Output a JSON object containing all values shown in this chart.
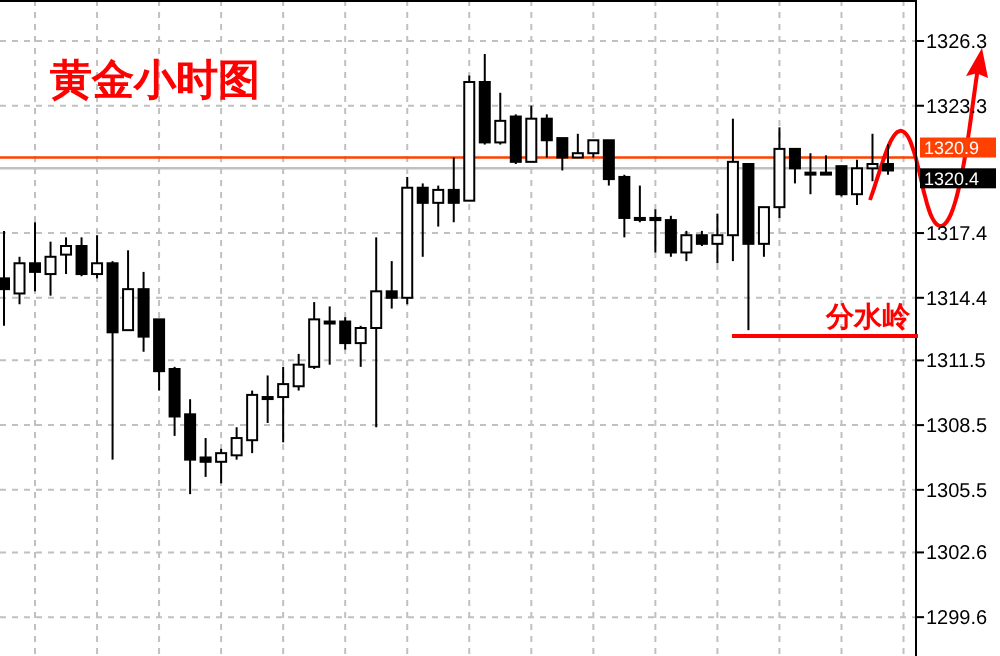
{
  "chart_data": {
    "type": "candlestick",
    "title": "黄金小时图",
    "categories": [
      null,
      null,
      null,
      null,
      null,
      null,
      null,
      null,
      null,
      null,
      null,
      null,
      null,
      null,
      null,
      null,
      null,
      null,
      null,
      null,
      null,
      null,
      null,
      null,
      null,
      null,
      null,
      null,
      null,
      null,
      null,
      null,
      null,
      null,
      null,
      null,
      null,
      null,
      null,
      null,
      null,
      null,
      null,
      null,
      null,
      null,
      null,
      null,
      null,
      null,
      null,
      null,
      null,
      null,
      null,
      null,
      null,
      null
    ],
    "ohlc": [
      [
        1315.3,
        1317.5,
        1313.1,
        1314.8
      ],
      [
        1314.6,
        1316.3,
        1314.1,
        1316.0
      ],
      [
        1316.0,
        1317.9,
        1314.7,
        1315.6
      ],
      [
        1315.5,
        1317.0,
        1314.5,
        1316.3
      ],
      [
        1316.4,
        1317.2,
        1315.5,
        1316.8
      ],
      [
        1316.8,
        1317.2,
        1315.4,
        1315.5
      ],
      [
        1315.5,
        1317.3,
        1315.3,
        1316.0
      ],
      [
        1316.0,
        1316.1,
        1306.9,
        1312.8
      ],
      [
        1312.9,
        1316.6,
        1312.9,
        1314.8
      ],
      [
        1314.8,
        1315.6,
        1311.9,
        1312.6
      ],
      [
        1313.4,
        1313.4,
        1310.1,
        1311.0
      ],
      [
        1311.1,
        1311.2,
        1308.0,
        1308.9
      ],
      [
        1309.0,
        1309.7,
        1305.3,
        1306.9
      ],
      [
        1307.0,
        1307.9,
        1306.1,
        1306.8
      ],
      [
        1306.8,
        1307.4,
        1305.8,
        1307.2
      ],
      [
        1307.1,
        1308.4,
        1306.9,
        1307.9
      ],
      [
        1307.8,
        1310.1,
        1307.2,
        1309.9
      ],
      [
        1309.8,
        1310.8,
        1308.6,
        1309.8
      ],
      [
        1309.8,
        1311.2,
        1307.7,
        1310.4
      ],
      [
        1310.3,
        1311.8,
        1310.1,
        1311.3
      ],
      [
        1311.2,
        1314.2,
        1311.1,
        1313.4
      ],
      [
        1313.3,
        1314.0,
        1311.3,
        1313.3
      ],
      [
        1313.3,
        1313.5,
        1312.0,
        1312.3
      ],
      [
        1312.3,
        1313.1,
        1311.2,
        1313.0
      ],
      [
        1313.0,
        1317.2,
        1308.4,
        1314.7
      ],
      [
        1314.7,
        1316.1,
        1313.9,
        1314.4
      ],
      [
        1314.4,
        1320.0,
        1314.1,
        1319.5
      ],
      [
        1319.5,
        1319.7,
        1316.3,
        1318.8
      ],
      [
        1318.8,
        1319.6,
        1317.7,
        1319.4
      ],
      [
        1319.4,
        1320.9,
        1317.9,
        1318.8
      ],
      [
        1318.9,
        1324.7,
        1318.9,
        1324.4
      ],
      [
        1324.4,
        1325.7,
        1321.5,
        1321.6
      ],
      [
        1321.6,
        1323.9,
        1321.5,
        1322.6
      ],
      [
        1322.8,
        1322.9,
        1320.6,
        1320.7
      ],
      [
        1320.7,
        1323.3,
        1320.7,
        1322.7
      ],
      [
        1322.7,
        1322.9,
        1320.9,
        1321.7
      ],
      [
        1321.8,
        1321.8,
        1320.3,
        1320.9
      ],
      [
        1320.9,
        1322.0,
        1320.9,
        1321.1
      ],
      [
        1321.1,
        1321.7,
        1320.9,
        1321.7
      ],
      [
        1321.7,
        1321.7,
        1319.6,
        1319.9
      ],
      [
        1320.0,
        1320.1,
        1317.2,
        1318.1
      ],
      [
        1318.1,
        1319.6,
        1317.9,
        1318.1
      ],
      [
        1318.1,
        1318.5,
        1316.5,
        1318.0
      ],
      [
        1318.0,
        1318.2,
        1316.3,
        1316.5
      ],
      [
        1316.5,
        1317.5,
        1316.1,
        1317.3
      ],
      [
        1317.3,
        1317.5,
        1316.8,
        1316.9
      ],
      [
        1316.9,
        1318.3,
        1316.0,
        1317.3
      ],
      [
        1317.3,
        1322.7,
        1316.1,
        1320.7
      ],
      [
        1320.6,
        1320.6,
        1312.9,
        1316.9
      ],
      [
        1316.9,
        1318.6,
        1316.3,
        1318.6
      ],
      [
        1318.6,
        1322.3,
        1318.1,
        1321.3
      ],
      [
        1321.3,
        1321.3,
        1319.7,
        1320.4
      ],
      [
        1320.2,
        1321.1,
        1319.2,
        1320.2
      ],
      [
        1320.2,
        1321.0,
        1320.1,
        1320.2
      ],
      [
        1320.5,
        1320.5,
        1319.1,
        1319.2
      ],
      [
        1319.2,
        1320.8,
        1318.7,
        1320.4
      ],
      [
        1320.4,
        1322.0,
        1319.8,
        1320.6
      ],
      [
        1320.6,
        1321.5,
        1320.1,
        1320.3
      ]
    ],
    "ylim": [
      1297.8,
      1328.2
    ],
    "yticks": [
      1326.3,
      1323.3,
      1317.4,
      1314.4,
      1311.5,
      1308.5,
      1305.5,
      1302.6,
      1299.6
    ],
    "tick_labels": "y",
    "grid": true,
    "ref_lines": [
      {
        "axis": "y",
        "value": 1320.9,
        "label": "1320.9",
        "color": "#ff4000"
      },
      {
        "axis": "y",
        "value": 1320.4,
        "label": "1320.4",
        "color": "#c0c0c0"
      }
    ],
    "annotations": [
      "分水岭"
    ]
  }
}
